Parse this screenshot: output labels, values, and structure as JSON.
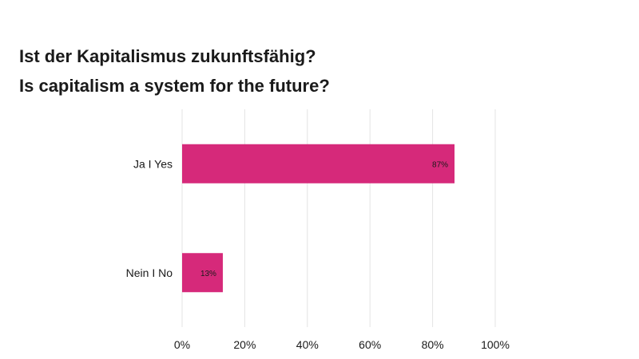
{
  "chart_data": {
    "type": "bar",
    "orientation": "horizontal",
    "title": "Ist der Kapitalismus zukunftsfähig?",
    "subtitle": "Is capitalism a system for the future?",
    "categories": [
      "Ja I Yes",
      "Nein I No"
    ],
    "values": [
      87,
      13
    ],
    "data_labels": [
      "87%",
      "13%"
    ],
    "xlim": [
      0,
      100
    ],
    "x_ticks": [
      0,
      20,
      40,
      60,
      80,
      100
    ],
    "x_tick_labels": [
      "0%",
      "20%",
      "40%",
      "60%",
      "80%",
      "100%"
    ],
    "xlabel": "",
    "ylabel": "",
    "grid": true,
    "legend": "none",
    "bar_color": "#d6297a",
    "grid_color": "#e3e3e3",
    "text_color": "#1a1a1a"
  }
}
